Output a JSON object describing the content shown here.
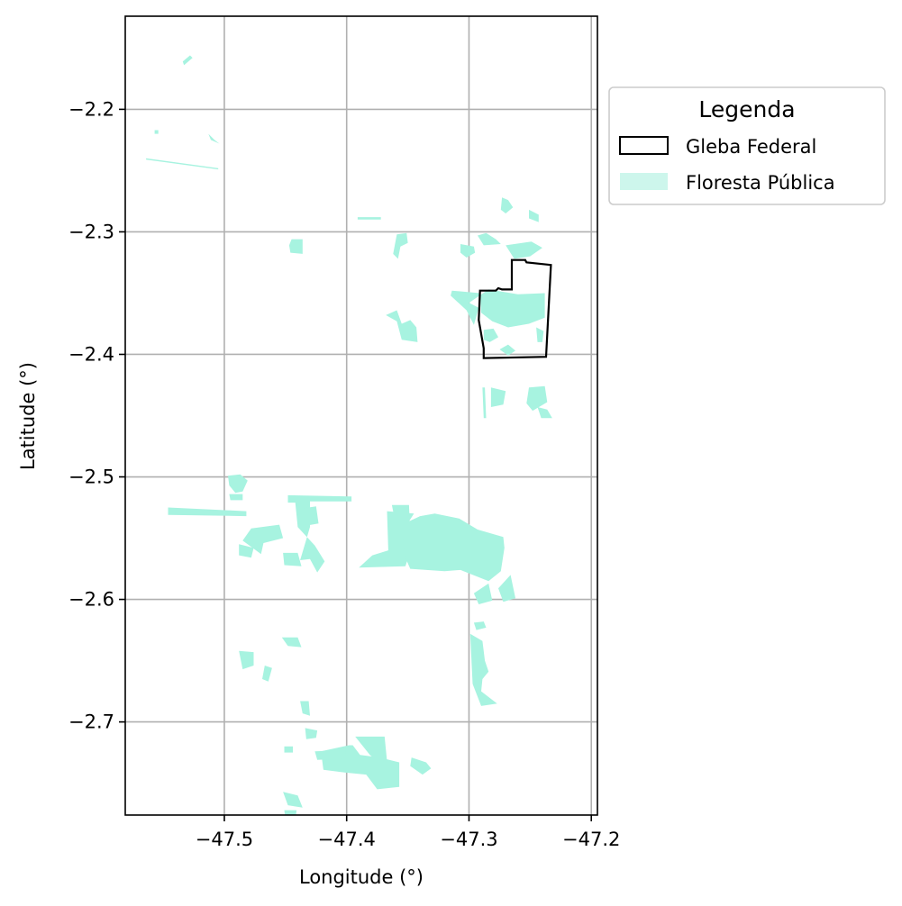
{
  "map": {
    "xlabel": "Longitude (°)",
    "ylabel": "Latitude (°)",
    "xticks": [
      {
        "value": -47.5,
        "label": "−47.5"
      },
      {
        "value": -47.4,
        "label": "−47.4"
      },
      {
        "value": -47.3,
        "label": "−47.3"
      },
      {
        "value": -47.2,
        "label": "−47.2"
      }
    ],
    "yticks": [
      {
        "value": -2.2,
        "label": "−2.2"
      },
      {
        "value": -2.3,
        "label": "−2.3"
      },
      {
        "value": -2.4,
        "label": "−2.4"
      },
      {
        "value": -2.5,
        "label": "−2.5"
      },
      {
        "value": -2.6,
        "label": "−2.6"
      },
      {
        "value": -2.7,
        "label": "−2.7"
      }
    ],
    "xlim": [
      -47.581,
      -47.195
    ],
    "ylim": [
      -2.776,
      -2.124
    ],
    "grid": true
  },
  "legend": {
    "title": "Legenda",
    "placement": "outside upper right",
    "items": [
      {
        "label": "Gleba Federal",
        "style": "outline",
        "color": "#000000"
      },
      {
        "label": "Floresta Pública",
        "style": "fill",
        "color": "#a7f3e0"
      }
    ]
  },
  "colors": {
    "forest": "#a7f3e0",
    "gleba_outline": "#000000",
    "grid": "#b0b0b0"
  },
  "gleba_federal": [
    [
      -47.291,
      -2.348
    ],
    [
      -47.278,
      -2.348
    ],
    [
      -47.276,
      -2.346
    ],
    [
      -47.273,
      -2.347
    ],
    [
      -47.265,
      -2.347
    ],
    [
      -47.265,
      -2.323
    ],
    [
      -47.254,
      -2.323
    ],
    [
      -47.253,
      -2.325
    ],
    [
      -47.233,
      -2.327
    ],
    [
      -47.237,
      -2.402
    ],
    [
      -47.288,
      -2.403
    ],
    [
      -47.288,
      -2.395
    ],
    [
      -47.292,
      -2.372
    ]
  ],
  "floresta_publica": [
    [
      [
        -47.534,
        -2.161
      ],
      [
        -47.528,
        -2.156
      ],
      [
        -47.526,
        -2.158
      ],
      [
        -47.533,
        -2.164
      ]
    ],
    [
      [
        -47.557,
        -2.217
      ],
      [
        -47.554,
        -2.217
      ],
      [
        -47.554,
        -2.22
      ],
      [
        -47.557,
        -2.22
      ]
    ],
    [
      [
        -47.513,
        -2.22
      ],
      [
        -47.508,
        -2.225
      ],
      [
        -47.504,
        -2.228
      ],
      [
        -47.511,
        -2.225
      ]
    ],
    [
      [
        -47.564,
        -2.24
      ],
      [
        -47.505,
        -2.248
      ],
      [
        -47.505,
        -2.249
      ],
      [
        -47.564,
        -2.241
      ]
    ],
    [
      [
        -47.391,
        -2.288
      ],
      [
        -47.372,
        -2.288
      ],
      [
        -47.372,
        -2.29
      ],
      [
        -47.391,
        -2.29
      ]
    ],
    [
      [
        -47.445,
        -2.306
      ],
      [
        -47.436,
        -2.306
      ],
      [
        -47.436,
        -2.318
      ],
      [
        -47.446,
        -2.317
      ],
      [
        -47.447,
        -2.311
      ]
    ],
    [
      [
        -47.359,
        -2.302
      ],
      [
        -47.351,
        -2.301
      ],
      [
        -47.35,
        -2.309
      ],
      [
        -47.356,
        -2.312
      ],
      [
        -47.358,
        -2.322
      ],
      [
        -47.362,
        -2.318
      ]
    ],
    [
      [
        -47.307,
        -2.31
      ],
      [
        -47.296,
        -2.312
      ],
      [
        -47.295,
        -2.317
      ],
      [
        -47.302,
        -2.321
      ],
      [
        -47.307,
        -2.317
      ]
    ],
    [
      [
        -47.368,
        -2.368
      ],
      [
        -47.359,
        -2.373
      ],
      [
        -47.355,
        -2.388
      ],
      [
        -47.342,
        -2.39
      ],
      [
        -47.343,
        -2.378
      ],
      [
        -47.348,
        -2.372
      ],
      [
        -47.355,
        -2.375
      ],
      [
        -47.359,
        -2.364
      ]
    ],
    [
      [
        -47.273,
        -2.272
      ],
      [
        -47.268,
        -2.274
      ],
      [
        -47.264,
        -2.28
      ],
      [
        -47.27,
        -2.285
      ],
      [
        -47.274,
        -2.282
      ]
    ],
    [
      [
        -47.293,
        -2.303
      ],
      [
        -47.286,
        -2.301
      ],
      [
        -47.278,
        -2.306
      ],
      [
        -47.274,
        -2.31
      ],
      [
        -47.288,
        -2.311
      ]
    ],
    [
      [
        -47.27,
        -2.311
      ],
      [
        -47.249,
        -2.308
      ],
      [
        -47.24,
        -2.313
      ],
      [
        -47.25,
        -2.32
      ],
      [
        -47.263,
        -2.322
      ]
    ],
    [
      [
        -47.251,
        -2.282
      ],
      [
        -47.243,
        -2.286
      ],
      [
        -47.243,
        -2.292
      ],
      [
        -47.251,
        -2.289
      ]
    ],
    [
      [
        -47.314,
        -2.348
      ],
      [
        -47.291,
        -2.35
      ],
      [
        -47.29,
        -2.366
      ],
      [
        -47.281,
        -2.373
      ],
      [
        -47.268,
        -2.378
      ],
      [
        -47.251,
        -2.375
      ],
      [
        -47.238,
        -2.37
      ],
      [
        -47.238,
        -2.35
      ],
      [
        -47.26,
        -2.351
      ],
      [
        -47.284,
        -2.347
      ],
      [
        -47.3,
        -2.358
      ],
      [
        -47.292,
        -2.362
      ],
      [
        -47.296,
        -2.376
      ],
      [
        -47.302,
        -2.364
      ],
      [
        -47.315,
        -2.352
      ]
    ],
    [
      [
        -47.288,
        -2.38
      ],
      [
        -47.28,
        -2.379
      ],
      [
        -47.276,
        -2.386
      ],
      [
        -47.283,
        -2.39
      ],
      [
        -47.288,
        -2.388
      ]
    ],
    [
      [
        -47.275,
        -2.396
      ],
      [
        -47.268,
        -2.392
      ],
      [
        -47.262,
        -2.397
      ],
      [
        -47.268,
        -2.401
      ]
    ],
    [
      [
        -47.245,
        -2.378
      ],
      [
        -47.239,
        -2.381
      ],
      [
        -47.24,
        -2.39
      ],
      [
        -47.244,
        -2.39
      ]
    ],
    [
      [
        -47.289,
        -2.427
      ],
      [
        -47.287,
        -2.427
      ],
      [
        -47.286,
        -2.452
      ],
      [
        -47.288,
        -2.452
      ]
    ],
    [
      [
        -47.282,
        -2.427
      ],
      [
        -47.27,
        -2.43
      ],
      [
        -47.272,
        -2.441
      ],
      [
        -47.282,
        -2.443
      ]
    ],
    [
      [
        -47.251,
        -2.427
      ],
      [
        -47.238,
        -2.426
      ],
      [
        -47.236,
        -2.439
      ],
      [
        -47.248,
        -2.446
      ],
      [
        -47.253,
        -2.44
      ]
    ],
    [
      [
        -47.244,
        -2.443
      ],
      [
        -47.236,
        -2.445
      ],
      [
        -47.232,
        -2.452
      ],
      [
        -47.241,
        -2.452
      ]
    ],
    [
      [
        -47.497,
        -2.499
      ],
      [
        -47.487,
        -2.498
      ],
      [
        -47.481,
        -2.503
      ],
      [
        -47.485,
        -2.512
      ],
      [
        -47.491,
        -2.513
      ],
      [
        -47.496,
        -2.507
      ]
    ],
    [
      [
        -47.496,
        -2.514
      ],
      [
        -47.485,
        -2.514
      ],
      [
        -47.485,
        -2.519
      ],
      [
        -47.495,
        -2.519
      ]
    ],
    [
      [
        -47.448,
        -2.515
      ],
      [
        -47.396,
        -2.516
      ],
      [
        -47.396,
        -2.52
      ],
      [
        -47.43,
        -2.52
      ],
      [
        -47.43,
        -2.541
      ],
      [
        -47.438,
        -2.568
      ],
      [
        -47.43,
        -2.567
      ],
      [
        -47.424,
        -2.578
      ],
      [
        -47.418,
        -2.569
      ],
      [
        -47.426,
        -2.556
      ],
      [
        -47.44,
        -2.541
      ],
      [
        -47.442,
        -2.521
      ],
      [
        -47.448,
        -2.521
      ]
    ],
    [
      [
        -47.438,
        -2.526
      ],
      [
        -47.425,
        -2.524
      ],
      [
        -47.423,
        -2.538
      ],
      [
        -47.434,
        -2.54
      ]
    ],
    [
      [
        -47.478,
        -2.542
      ],
      [
        -47.455,
        -2.539
      ],
      [
        -47.452,
        -2.55
      ],
      [
        -47.468,
        -2.554
      ],
      [
        -47.47,
        -2.563
      ],
      [
        -47.485,
        -2.552
      ]
    ],
    [
      [
        -47.488,
        -2.555
      ],
      [
        -47.476,
        -2.558
      ],
      [
        -47.478,
        -2.566
      ],
      [
        -47.488,
        -2.564
      ]
    ],
    [
      [
        -47.452,
        -2.562
      ],
      [
        -47.44,
        -2.562
      ],
      [
        -47.437,
        -2.573
      ],
      [
        -47.451,
        -2.572
      ]
    ],
    [
      [
        -47.367,
        -2.528
      ],
      [
        -47.345,
        -2.53
      ],
      [
        -47.354,
        -2.544
      ],
      [
        -47.346,
        -2.555
      ],
      [
        -47.352,
        -2.573
      ],
      [
        -47.39,
        -2.574
      ],
      [
        -47.379,
        -2.564
      ],
      [
        -47.366,
        -2.56
      ]
    ],
    [
      [
        -47.355,
        -2.539
      ],
      [
        -47.34,
        -2.532
      ],
      [
        -47.328,
        -2.53
      ],
      [
        -47.308,
        -2.534
      ],
      [
        -47.293,
        -2.543
      ],
      [
        -47.272,
        -2.549
      ],
      [
        -47.271,
        -2.558
      ],
      [
        -47.274,
        -2.577
      ],
      [
        -47.284,
        -2.585
      ],
      [
        -47.307,
        -2.576
      ],
      [
        -47.32,
        -2.577
      ],
      [
        -47.348,
        -2.575
      ],
      [
        -47.352,
        -2.566
      ]
    ],
    [
      [
        -47.363,
        -2.523
      ],
      [
        -47.349,
        -2.523
      ],
      [
        -47.348,
        -2.549
      ],
      [
        -47.358,
        -2.548
      ]
    ],
    [
      [
        -47.296,
        -2.595
      ],
      [
        -47.284,
        -2.587
      ],
      [
        -47.281,
        -2.601
      ],
      [
        -47.292,
        -2.604
      ]
    ],
    [
      [
        -47.296,
        -2.619
      ],
      [
        -47.288,
        -2.618
      ],
      [
        -47.286,
        -2.623
      ],
      [
        -47.294,
        -2.625
      ]
    ],
    [
      [
        -47.266,
        -2.58
      ],
      [
        -47.276,
        -2.591
      ],
      [
        -47.272,
        -2.602
      ],
      [
        -47.262,
        -2.599
      ]
    ],
    [
      [
        -47.299,
        -2.628
      ],
      [
        -47.289,
        -2.634
      ],
      [
        -47.287,
        -2.65
      ],
      [
        -47.284,
        -2.659
      ],
      [
        -47.289,
        -2.665
      ],
      [
        -47.29,
        -2.675
      ],
      [
        -47.277,
        -2.685
      ],
      [
        -47.29,
        -2.687
      ],
      [
        -47.297,
        -2.669
      ]
    ],
    [
      [
        -47.488,
        -2.642
      ],
      [
        -47.476,
        -2.643
      ],
      [
        -47.476,
        -2.654
      ],
      [
        -47.485,
        -2.657
      ]
    ],
    [
      [
        -47.467,
        -2.654
      ],
      [
        -47.461,
        -2.656
      ],
      [
        -47.464,
        -2.667
      ],
      [
        -47.469,
        -2.665
      ]
    ],
    [
      [
        -47.453,
        -2.631
      ],
      [
        -47.44,
        -2.631
      ],
      [
        -47.437,
        -2.639
      ],
      [
        -47.448,
        -2.638
      ]
    ],
    [
      [
        -47.438,
        -2.683
      ],
      [
        -47.431,
        -2.683
      ],
      [
        -47.43,
        -2.695
      ],
      [
        -47.436,
        -2.693
      ]
    ],
    [
      [
        -47.434,
        -2.705
      ],
      [
        -47.424,
        -2.707
      ],
      [
        -47.425,
        -2.713
      ],
      [
        -47.433,
        -2.714
      ]
    ],
    [
      [
        -47.393,
        -2.712
      ],
      [
        -47.369,
        -2.712
      ],
      [
        -47.367,
        -2.732
      ],
      [
        -47.375,
        -2.732
      ],
      [
        -47.381,
        -2.727
      ]
    ],
    [
      [
        -47.421,
        -2.724
      ],
      [
        -47.419,
        -2.739
      ],
      [
        -47.404,
        -2.741
      ],
      [
        -47.384,
        -2.743
      ],
      [
        -47.375,
        -2.755
      ],
      [
        -47.357,
        -2.753
      ],
      [
        -47.357,
        -2.733
      ],
      [
        -47.373,
        -2.729
      ],
      [
        -47.389,
        -2.727
      ],
      [
        -47.395,
        -2.719
      ],
      [
        -47.398,
        -2.719
      ]
    ],
    [
      [
        -47.347,
        -2.729
      ],
      [
        -47.335,
        -2.733
      ],
      [
        -47.331,
        -2.738
      ],
      [
        -47.338,
        -2.743
      ],
      [
        -47.348,
        -2.736
      ]
    ],
    [
      [
        -47.426,
        -2.724
      ],
      [
        -47.401,
        -2.723
      ],
      [
        -47.4,
        -2.73
      ],
      [
        -47.424,
        -2.731
      ]
    ],
    [
      [
        -47.452,
        -2.757
      ],
      [
        -47.44,
        -2.76
      ],
      [
        -47.436,
        -2.77
      ],
      [
        -47.448,
        -2.768
      ]
    ],
    [
      [
        -47.451,
        -2.772
      ],
      [
        -47.441,
        -2.772
      ],
      [
        -47.442,
        -2.781
      ],
      [
        -47.45,
        -2.779
      ]
    ],
    [
      [
        -47.451,
        -2.72
      ],
      [
        -47.444,
        -2.72
      ],
      [
        -47.444,
        -2.725
      ],
      [
        -47.451,
        -2.725
      ]
    ],
    [
      [
        -47.546,
        -2.525
      ],
      [
        -47.482,
        -2.528
      ],
      [
        -47.482,
        -2.532
      ],
      [
        -47.546,
        -2.531
      ]
    ]
  ]
}
